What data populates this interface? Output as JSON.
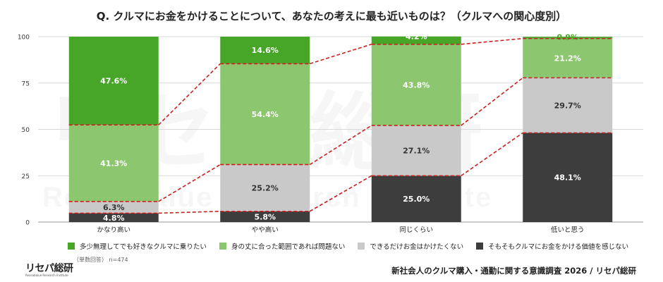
{
  "title": "Q. クルマにお金をかけることについて、あなたの考えに最も近いものは？（クルマへの関心度別）",
  "watermark": "リセパ総研",
  "watermark_sub": "Reseabalue Research Institute",
  "logo": {
    "text": "リセパ総研",
    "sub": "Reseabalue Research Institute"
  },
  "note": "（単数回答） n=474",
  "source": "新社会人のクルマ購入・通勤に関する意識調査 2026 / リセパ総研",
  "chart_data": {
    "type": "bar",
    "stacked": true,
    "percent": true,
    "categories": [
      "かなり高い",
      "やや高い",
      "同じくらい",
      "低いと思う"
    ],
    "ylim": [
      0,
      100
    ],
    "yticks": [
      0,
      25,
      50,
      75,
      100
    ],
    "grid": true,
    "legend_position": "bottom",
    "series": [
      {
        "name": "そもそもクルマにお金をかける価値を感じない",
        "color": "#3d3d3d",
        "label_color": "#ffffff",
        "values": [
          4.8,
          5.8,
          25.0,
          48.1
        ]
      },
      {
        "name": "できるだけお金はかけたくない",
        "color": "#c9c9c9",
        "label_color": "#333333",
        "values": [
          6.3,
          25.2,
          27.1,
          29.7
        ]
      },
      {
        "name": "身の丈に合った範囲であれば問題ない",
        "color": "#8cc66f",
        "label_color": "#ffffff",
        "values": [
          41.3,
          54.4,
          43.8,
          21.2
        ]
      },
      {
        "name": "多少無理してでも好きなクルマに乗りたい",
        "color": "#47a528",
        "label_color": "#ffffff",
        "values": [
          47.6,
          14.6,
          4.2,
          0.9
        ]
      }
    ],
    "legend_order": [
      3,
      2,
      1,
      0
    ],
    "connector_color": "#cc1f1f"
  }
}
